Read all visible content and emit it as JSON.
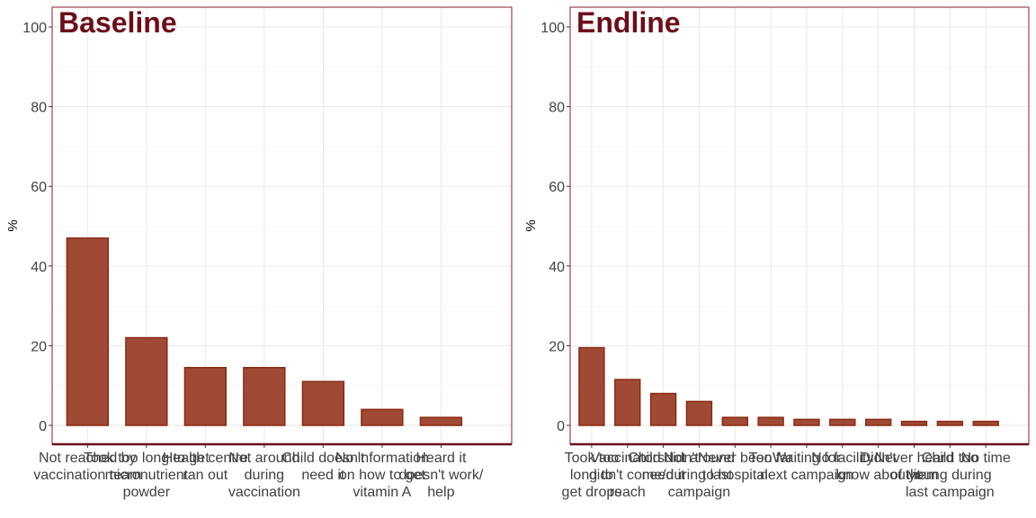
{
  "chart_data": [
    {
      "type": "bar",
      "title": "Baseline",
      "ylabel": "%",
      "ylim": [
        0,
        100
      ],
      "yticks": [
        0,
        20,
        40,
        60,
        80,
        100
      ],
      "grid": true,
      "bar_color": "#a04a36",
      "categories": [
        [
          "Not reached by",
          "vaccination team"
        ],
        [
          "Took too long to get",
          "micronutrient",
          "powder"
        ],
        [
          "Health centre",
          "ran out"
        ],
        [
          "Not around",
          "during",
          "vaccination"
        ],
        [
          "Child doesn't",
          "need it"
        ],
        [
          "No information",
          "on how to get",
          "vitamin A"
        ],
        [
          "Heard it",
          "doesn't work/",
          "help"
        ]
      ],
      "values": [
        47,
        22,
        14.5,
        14.5,
        11,
        4,
        2
      ]
    },
    {
      "type": "bar",
      "title": "Endline",
      "ylabel": "%",
      "ylim": [
        0,
        100
      ],
      "yticks": [
        0,
        20,
        40,
        60,
        80,
        100
      ],
      "grid": true,
      "bar_color": "#a04a36",
      "categories": [
        [
          "Took too",
          "long to",
          "get drops"
        ],
        [
          "Vaccinators",
          "didn't come/",
          "reach"
        ],
        [
          "Child didn't",
          "need it"
        ],
        [
          "Not around",
          "during last",
          "campaign"
        ],
        [
          "Never been",
          "to hospital"
        ],
        [
          "Too far"
        ],
        [
          "Waiting for",
          "next campaign"
        ],
        [
          "No facility"
        ],
        [
          "Didn't",
          "know about it"
        ],
        [
          "Never heard",
          "of them"
        ],
        [
          "Child too",
          "young during",
          "last campaign"
        ],
        [
          "No time"
        ]
      ],
      "values": [
        19.5,
        11.5,
        8,
        6,
        2,
        2,
        1.5,
        1.5,
        1.5,
        1,
        1,
        1
      ]
    }
  ]
}
